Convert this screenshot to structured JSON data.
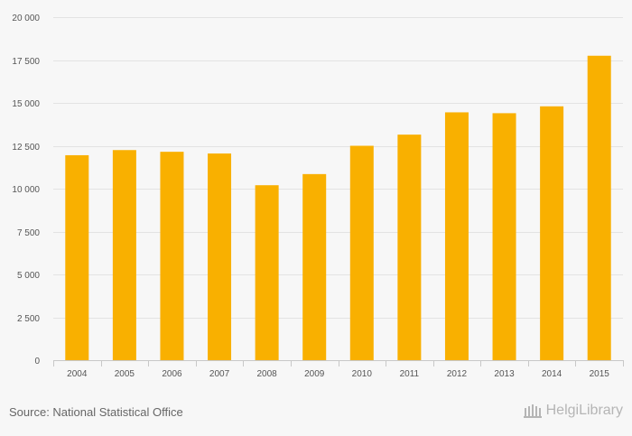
{
  "chart_data": {
    "type": "bar",
    "categories": [
      "2004",
      "2005",
      "2006",
      "2007",
      "2008",
      "2009",
      "2010",
      "2011",
      "2012",
      "2013",
      "2014",
      "2015"
    ],
    "values": [
      11950,
      12250,
      12150,
      12050,
      10200,
      10850,
      12500,
      13150,
      14450,
      14400,
      14800,
      17750
    ],
    "ylim": [
      0,
      20000
    ],
    "yticks": [
      0,
      2500,
      5000,
      7500,
      10000,
      12500,
      15000,
      17500,
      20000
    ],
    "ytick_labels": [
      "0",
      "2 500",
      "5 000",
      "7 500",
      "10 000",
      "12 500",
      "15 000",
      "17 500",
      "20 000"
    ],
    "grid": true,
    "bar_color": "#f9b000",
    "title": "",
    "xlabel": "",
    "ylabel": ""
  },
  "footer": {
    "source": "Source: National Statistical Office",
    "logo_text": "HelgiLibrary"
  }
}
